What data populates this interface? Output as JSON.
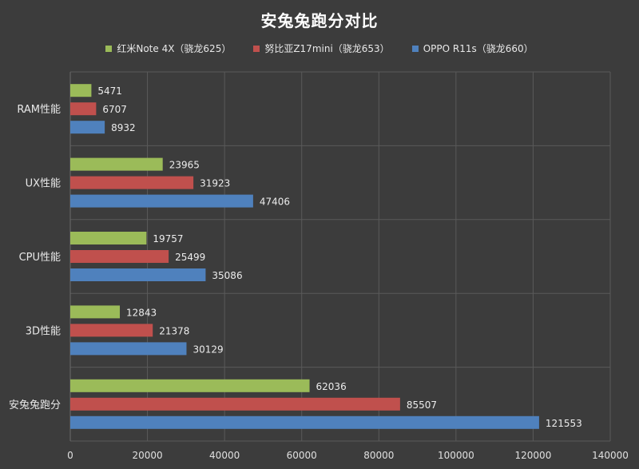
{
  "chart_data": {
    "type": "bar",
    "orientation": "horizontal",
    "title": "安兔兔跑分对比",
    "categories": [
      "RAM性能",
      "UX性能",
      "CPU性能",
      "3D性能",
      "安兔兔跑分"
    ],
    "series": [
      {
        "name": "红米Note 4X（骁龙625）",
        "color": "#9bbb59",
        "values": [
          5471,
          23965,
          19757,
          12843,
          62036
        ]
      },
      {
        "name": "努比亚Z17mini（骁龙653）",
        "color": "#c0504d",
        "values": [
          6707,
          31923,
          25499,
          21378,
          85507
        ]
      },
      {
        "name": "OPPO R11s（骁龙660）",
        "color": "#4f81bd",
        "values": [
          8932,
          47406,
          35086,
          30129,
          121553
        ]
      }
    ],
    "xlim": [
      0,
      140000
    ],
    "xticks": [
      0,
      20000,
      40000,
      60000,
      80000,
      100000,
      120000,
      140000
    ],
    "grid": true,
    "legend_position": "top"
  }
}
